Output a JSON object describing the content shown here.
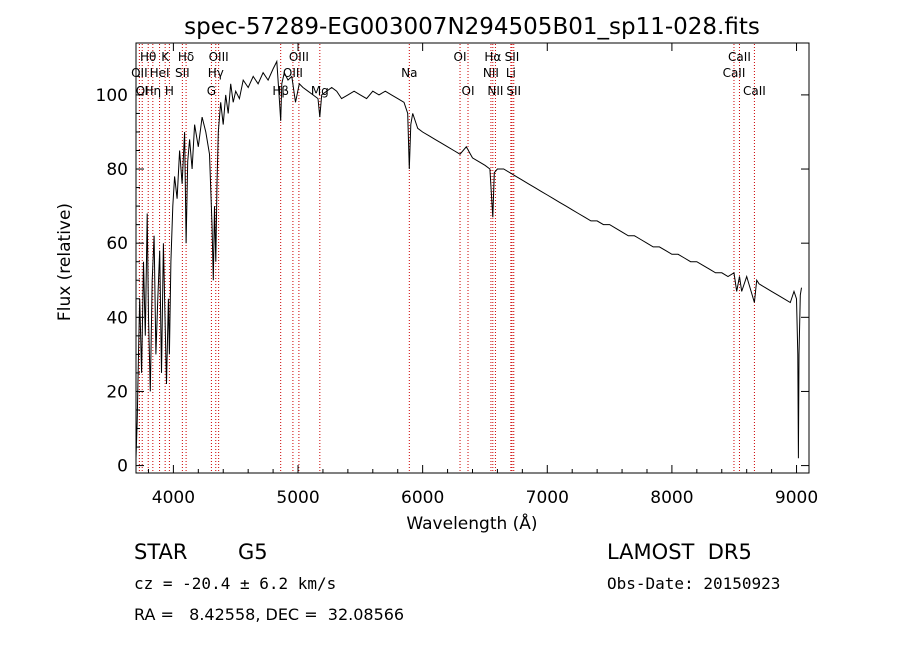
{
  "footer": {
    "class": "STAR",
    "subclass": "G5",
    "survey": "LAMOST  DR5",
    "cz": "cz = -20.4 ± 6.2 km/s",
    "obs_date": "Obs-Date: 20150923",
    "radec": "RA =   8.42558, DEC =  32.08566"
  },
  "chart_data": {
    "type": "line",
    "title": "spec-57289-EG003007N294505B01_sp11-028.fits",
    "xlabel": "Wavelength (Å)",
    "ylabel": "Flux (relative)",
    "xlim": [
      3700,
      9100
    ],
    "ylim": [
      -2,
      114
    ],
    "xticks": [
      4000,
      5000,
      6000,
      7000,
      8000,
      9000
    ],
    "yticks": [
      0,
      20,
      40,
      60,
      80,
      100
    ],
    "grid": false,
    "colors": {
      "spectrum": "#000000",
      "lines": "#cc0000"
    },
    "series": [
      {
        "x": [
          3700,
          3710,
          3720,
          3730,
          3745,
          3760,
          3775,
          3790,
          3800,
          3815,
          3830,
          3845,
          3860,
          3875,
          3890,
          3905,
          3920,
          3933,
          3945,
          3960,
          3968,
          3980,
          3995,
          4010,
          4030,
          4050,
          4070,
          4090,
          4102,
          4115,
          4130,
          4150,
          4170,
          4200,
          4230,
          4260,
          4290,
          4310,
          4320,
          4330,
          4340,
          4350,
          4360,
          4380,
          4400,
          4420,
          4440,
          4460,
          4480,
          4500,
          4530,
          4560,
          4600,
          4640,
          4680,
          4720,
          4760,
          4800,
          4830,
          4850,
          4861,
          4870,
          4890,
          4920,
          4950,
          4980,
          5010,
          5040,
          5080,
          5120,
          5160,
          5175,
          5190,
          5230,
          5270,
          5310,
          5350,
          5400,
          5450,
          5500,
          5550,
          5600,
          5650,
          5700,
          5750,
          5800,
          5850,
          5880,
          5893,
          5905,
          5920,
          5960,
          6000,
          6050,
          6100,
          6150,
          6200,
          6250,
          6300,
          6350,
          6400,
          6450,
          6500,
          6540,
          6563,
          6575,
          6600,
          6650,
          6700,
          6750,
          6800,
          6850,
          6900,
          6950,
          7000,
          7050,
          7100,
          7150,
          7200,
          7250,
          7300,
          7350,
          7400,
          7450,
          7500,
          7550,
          7600,
          7650,
          7700,
          7750,
          7800,
          7850,
          7900,
          7950,
          8000,
          8050,
          8100,
          8150,
          8200,
          8250,
          8300,
          8350,
          8400,
          8450,
          8498,
          8520,
          8542,
          8560,
          8600,
          8662,
          8680,
          8700,
          8750,
          8800,
          8850,
          8900,
          8950,
          8980,
          9000,
          9010,
          9015,
          9020,
          9030,
          9040
        ],
        "y": [
          2,
          12,
          30,
          45,
          25,
          55,
          35,
          68,
          40,
          20,
          50,
          62,
          30,
          45,
          58,
          25,
          60,
          40,
          22,
          45,
          30,
          55,
          70,
          78,
          72,
          85,
          76,
          90,
          60,
          82,
          88,
          80,
          92,
          86,
          94,
          90,
          84,
          65,
          50,
          70,
          55,
          76,
          90,
          98,
          92,
          100,
          95,
          103,
          98,
          101,
          99,
          104,
          102,
          105,
          103,
          106,
          104,
          107,
          109,
          99,
          93,
          103,
          106,
          104,
          105,
          98,
          103,
          102,
          101,
          100,
          99,
          94,
          100,
          101,
          102,
          101,
          99,
          100,
          101,
          100,
          99,
          101,
          100,
          101,
          100,
          99,
          98,
          95,
          80,
          92,
          95,
          91,
          90,
          89,
          88,
          87,
          86,
          85,
          84,
          86,
          83,
          82,
          81,
          80,
          67,
          79,
          80,
          80,
          79,
          78,
          77,
          76,
          75,
          74,
          73,
          72,
          71,
          70,
          69,
          68,
          67,
          66,
          66,
          65,
          65,
          64,
          63,
          62,
          62,
          61,
          60,
          59,
          59,
          58,
          57,
          57,
          56,
          55,
          55,
          54,
          53,
          52,
          52,
          51,
          52,
          47,
          51,
          47,
          51,
          44,
          50,
          49,
          48,
          47,
          46,
          45,
          44,
          47,
          45,
          30,
          2,
          30,
          46,
          48
        ]
      }
    ],
    "spectral_lines": [
      {
        "label": "Hθ",
        "x": 3798,
        "row": 1
      },
      {
        "label": "K",
        "x": 3934,
        "row": 1
      },
      {
        "label": "Hδ",
        "x": 4102,
        "row": 1
      },
      {
        "label": "OIII",
        "x": 4363,
        "row": 1
      },
      {
        "label": "OIII",
        "x": 5007,
        "row": 1
      },
      {
        "label": "OI",
        "x": 6300,
        "row": 1
      },
      {
        "label": "Hα",
        "x": 6563,
        "row": 1
      },
      {
        "label": "SII",
        "x": 6717,
        "row": 1
      },
      {
        "label": "CaII",
        "x": 8542,
        "row": 1
      },
      {
        "label": "OII",
        "x": 3727,
        "row": 2
      },
      {
        "label": "HeI",
        "x": 3889,
        "row": 2
      },
      {
        "label": "SII",
        "x": 4072,
        "row": 2
      },
      {
        "label": "Hγ",
        "x": 4340,
        "row": 2
      },
      {
        "label": "OIII",
        "x": 4959,
        "row": 2
      },
      {
        "label": "Na",
        "x": 5893,
        "row": 2
      },
      {
        "label": "NII",
        "x": 6548,
        "row": 2
      },
      {
        "label": "Li",
        "x": 6708,
        "row": 2
      },
      {
        "label": "CaII",
        "x": 8498,
        "row": 2
      },
      {
        "label": "OI",
        "x": 3750,
        "row": 3
      },
      {
        "label": "Hη",
        "x": 3835,
        "row": 3
      },
      {
        "label": "H",
        "x": 3968,
        "row": 3
      },
      {
        "label": "G",
        "x": 4305,
        "row": 3
      },
      {
        "label": "Hβ",
        "x": 4861,
        "row": 3
      },
      {
        "label": "Mg",
        "x": 5175,
        "row": 3
      },
      {
        "label": "OI",
        "x": 6364,
        "row": 3
      },
      {
        "label": "NII",
        "x": 6584,
        "row": 3
      },
      {
        "label": "SII",
        "x": 6731,
        "row": 3
      },
      {
        "label": "CaII",
        "x": 8662,
        "row": 3
      }
    ]
  }
}
